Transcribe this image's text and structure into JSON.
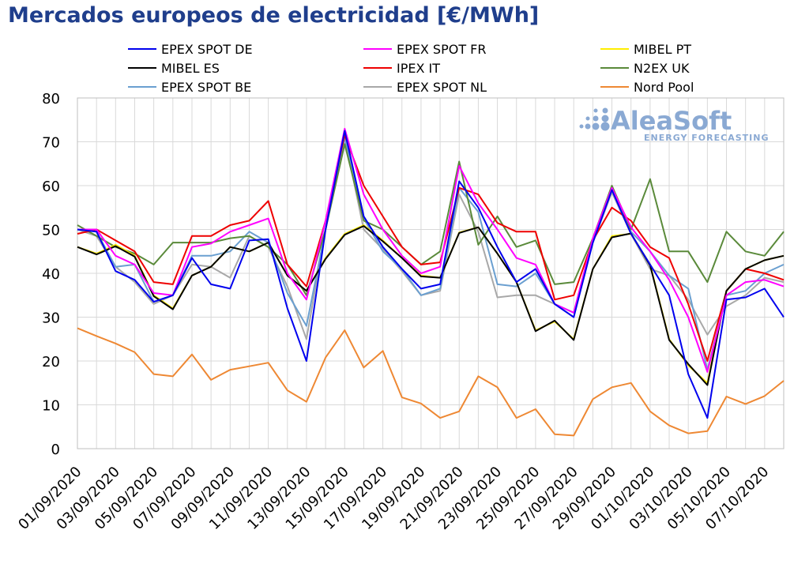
{
  "chart_data": {
    "type": "line",
    "title": "Mercados europeos de electricidad [€/MWh]",
    "ylim": [
      0,
      80
    ],
    "yticks": [
      0,
      10,
      20,
      30,
      40,
      50,
      60,
      70,
      80
    ],
    "grid": "horizontal",
    "legend_position": "top",
    "x": [
      "01/09/2020",
      "02/09/2020",
      "03/09/2020",
      "04/09/2020",
      "05/09/2020",
      "06/09/2020",
      "07/09/2020",
      "08/09/2020",
      "09/09/2020",
      "10/09/2020",
      "11/09/2020",
      "12/09/2020",
      "13/09/2020",
      "14/09/2020",
      "15/09/2020",
      "16/09/2020",
      "17/09/2020",
      "18/09/2020",
      "19/09/2020",
      "20/09/2020",
      "21/09/2020",
      "22/09/2020",
      "23/09/2020",
      "24/09/2020",
      "25/09/2020",
      "26/09/2020",
      "27/09/2020",
      "28/09/2020",
      "29/09/2020",
      "30/09/2020",
      "01/10/2020",
      "02/10/2020",
      "03/10/2020",
      "04/10/2020",
      "05/10/2020",
      "06/10/2020",
      "07/10/2020",
      "08/10/2020"
    ],
    "xtick_labels": [
      "01/09/2020",
      "03/09/2020",
      "05/09/2020",
      "07/09/2020",
      "09/09/2020",
      "11/09/2020",
      "13/09/2020",
      "15/09/2020",
      "17/09/2020",
      "19/09/2020",
      "21/09/2020",
      "23/09/2020",
      "25/09/2020",
      "27/09/2020",
      "29/09/2020",
      "01/10/2020",
      "03/10/2020",
      "05/10/2020",
      "07/10/2020"
    ],
    "series": [
      {
        "name": "EPEX SPOT DE",
        "color": "#0000ee",
        "values": [
          50.0,
          49.5,
          40.5,
          38.5,
          33.5,
          35.0,
          43.5,
          37.5,
          36.5,
          47.5,
          47.8,
          32.0,
          20.0,
          50.0,
          72.5,
          53.0,
          46.0,
          41.0,
          36.5,
          37.5,
          61.0,
          55.0,
          46.0,
          38.0,
          41.0,
          33.0,
          30.0,
          47.0,
          59.0,
          49.0,
          42.0,
          35.0,
          17.0,
          7.0,
          34.0,
          34.5,
          36.5,
          30.0
        ]
      },
      {
        "name": "EPEX SPOT FR",
        "color": "#ff00ff",
        "values": [
          50.0,
          50.0,
          44.0,
          42.0,
          35.5,
          35.0,
          46.0,
          46.8,
          49.5,
          51.0,
          52.5,
          40.0,
          34.0,
          52.0,
          73.0,
          58.0,
          50.0,
          44.0,
          40.0,
          41.5,
          64.5,
          56.0,
          50.0,
          43.5,
          42.0,
          33.0,
          31.0,
          48.0,
          59.5,
          50.5,
          45.0,
          38.5,
          30.0,
          17.5,
          35.0,
          38.0,
          38.5,
          37.0
        ]
      },
      {
        "name": "MIBEL PT",
        "color": "#ffee00",
        "values": [
          46.0,
          44.5,
          46.5,
          44.0,
          35.0,
          32.0,
          39.5,
          41.5,
          46.0,
          45.0,
          47.0,
          39.5,
          36.0,
          43.5,
          49.0,
          51.0,
          47.5,
          43.5,
          39.5,
          39.0,
          49.3,
          50.5,
          44.5,
          38.0,
          27.0,
          29.0,
          25.0,
          41.0,
          48.5,
          49.0,
          42.0,
          25.0,
          19.0,
          15.0,
          36.0,
          41.0,
          43.0,
          44.0
        ]
      },
      {
        "name": "MIBEL ES",
        "color": "#000000",
        "values": [
          46.0,
          44.3,
          46.2,
          43.8,
          34.8,
          31.8,
          39.5,
          41.5,
          46.0,
          45.0,
          47.0,
          39.5,
          36.0,
          43.3,
          48.8,
          50.8,
          47.3,
          43.5,
          39.3,
          39.0,
          49.2,
          50.5,
          44.5,
          38.0,
          26.8,
          29.2,
          24.8,
          41.0,
          48.2,
          49.1,
          41.8,
          24.8,
          19.3,
          14.5,
          36.0,
          41.0,
          43.0,
          44.0
        ]
      },
      {
        "name": "IPEX IT",
        "color": "#ee0000",
        "values": [
          49.0,
          50.0,
          47.5,
          45.0,
          38.0,
          37.5,
          48.5,
          48.5,
          51.0,
          52.0,
          56.5,
          42.0,
          37.0,
          52.0,
          71.5,
          60.0,
          53.0,
          46.0,
          42.0,
          42.5,
          59.5,
          58.0,
          51.5,
          49.5,
          49.5,
          34.0,
          35.0,
          47.5,
          55.0,
          52.0,
          46.0,
          43.5,
          33.0,
          20.0,
          36.0,
          41.0,
          40.0,
          38.5
        ]
      },
      {
        "name": "N2EX UK",
        "color": "#5a8a3a",
        "values": [
          51.0,
          48.5,
          46.0,
          44.5,
          42.0,
          47.0,
          47.0,
          47.0,
          48.0,
          48.5,
          46.0,
          42.0,
          35.0,
          50.0,
          69.5,
          52.0,
          50.0,
          46.0,
          42.0,
          45.0,
          65.5,
          46.5,
          53.0,
          46.0,
          47.5,
          37.5,
          38.0,
          48.0,
          60.0,
          50.0,
          61.5,
          45.0,
          45.0,
          38.0,
          49.5,
          45.0,
          44.0,
          49.5
        ]
      },
      {
        "name": "EPEX SPOT BE",
        "color": "#6a9fd0",
        "values": [
          50.0,
          49.5,
          41.5,
          42.0,
          33.5,
          35.0,
          44.0,
          44.0,
          45.0,
          49.5,
          47.0,
          35.5,
          28.0,
          50.0,
          71.0,
          52.5,
          45.0,
          41.0,
          35.0,
          36.5,
          59.5,
          54.0,
          37.5,
          37.0,
          40.0,
          33.0,
          31.0,
          47.0,
          59.0,
          49.5,
          45.0,
          39.5,
          36.5,
          18.0,
          35.0,
          36.0,
          40.0,
          42.0
        ]
      },
      {
        "name": "EPEX SPOT NL",
        "color": "#a8a8a8",
        "values": [
          50.0,
          48.5,
          41.5,
          38.0,
          33.0,
          35.0,
          42.0,
          41.5,
          39.0,
          48.5,
          46.0,
          37.0,
          25.0,
          50.0,
          71.0,
          50.0,
          45.5,
          40.5,
          35.0,
          36.0,
          58.0,
          49.5,
          34.5,
          35.0,
          35.0,
          33.0,
          31.0,
          47.0,
          58.5,
          49.0,
          41.0,
          39.5,
          34.0,
          26.0,
          32.5,
          35.0,
          39.0,
          38.0
        ]
      },
      {
        "name": "Nord Pool",
        "color": "#ee8833",
        "values": [
          27.5,
          25.7,
          24.0,
          22.0,
          17.0,
          16.5,
          21.5,
          15.7,
          18.0,
          18.8,
          19.6,
          13.3,
          10.7,
          20.8,
          27.0,
          18.5,
          22.3,
          11.7,
          10.3,
          7.0,
          8.5,
          16.5,
          14.0,
          7.0,
          9.0,
          3.3,
          3.0,
          11.3,
          14.0,
          15.0,
          8.5,
          5.3,
          3.5,
          4.0,
          11.9,
          10.2,
          12.0,
          15.5
        ]
      }
    ]
  },
  "logo": {
    "main": "AleaSoft",
    "sub": "ENERGY FORECASTING"
  }
}
